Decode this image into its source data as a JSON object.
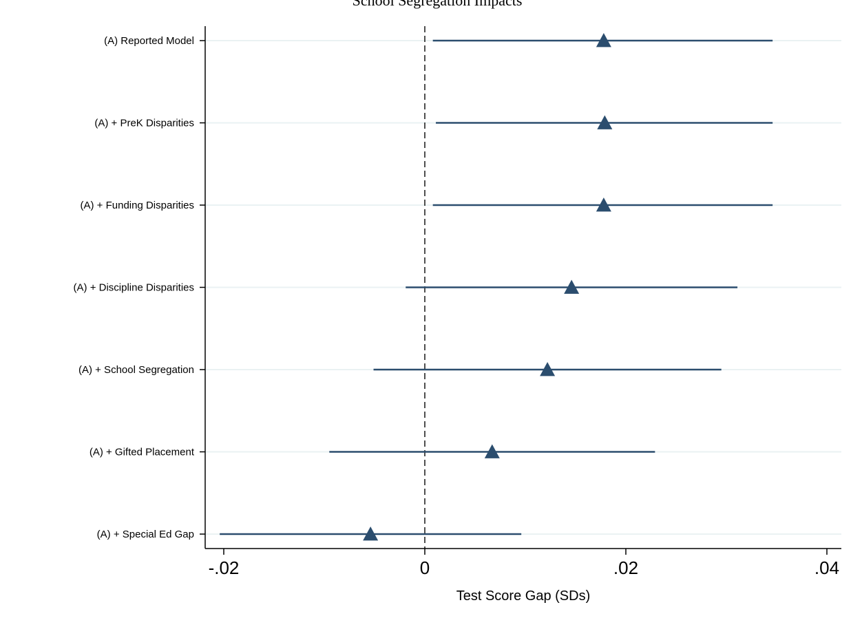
{
  "chart_data": {
    "type": "scatter",
    "title": "School Segregation Impacts",
    "xlabel": "Test Score Gap (SDs)",
    "ylabel": "",
    "xlim": [
      -0.022,
      0.042
    ],
    "x_ticks": [
      -0.02,
      0,
      0.02,
      0.04
    ],
    "x_tick_labels": [
      "-.02",
      "0",
      ".02",
      ".04"
    ],
    "reference_line_x": 0,
    "grid": "horizontal",
    "marker": "triangle",
    "colors": {
      "marker": "#2b4d6e",
      "ci_line": "#2b4d6e",
      "gridline": "#eaf2f3",
      "axis": "#000000"
    },
    "categories": [
      "(A) Reported Model",
      "(A) + PreK Disparities",
      "(A) + Funding Disparities",
      "(A) + Discipline Disparities",
      "(A) + School Segregation",
      "(A) + Gifted Placement",
      "(A) + Special Ed Gap"
    ],
    "estimates": [
      0.0178,
      0.0179,
      0.0178,
      0.0146,
      0.0122,
      0.0067,
      -0.0054
    ],
    "ci_low": [
      0.0008,
      0.0011,
      0.0008,
      -0.0019,
      -0.0051,
      -0.0095,
      -0.0204
    ],
    "ci_high": [
      0.0346,
      0.0346,
      0.0346,
      0.0311,
      0.0295,
      0.0229,
      0.0096
    ]
  }
}
